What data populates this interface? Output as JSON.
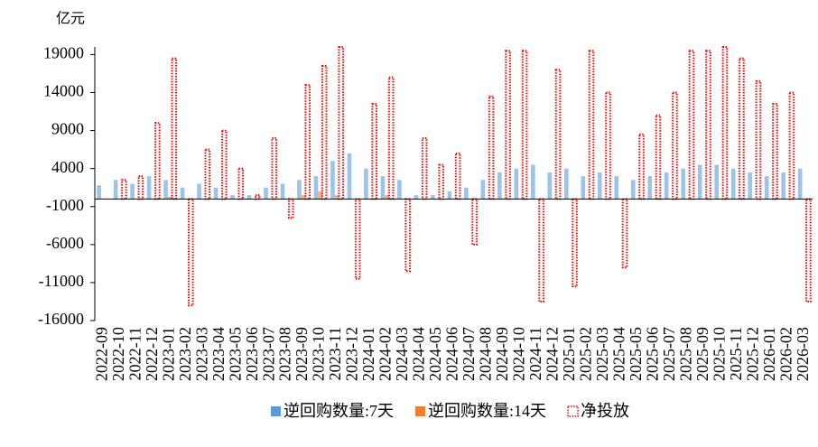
{
  "chart_data": {
    "type": "bar",
    "y_label": "亿元",
    "categories": [
      "2022-09",
      "2022-10",
      "2022-11",
      "2022-12",
      "2023-01",
      "2023-02",
      "2023-03",
      "2023-04",
      "2023-05",
      "2023-06",
      "2023-07",
      "2023-08",
      "2023-09",
      "2023-10",
      "2023-11",
      "2023-12",
      "2024-01",
      "2024-02",
      "2024-03",
      "2024-04",
      "2024-05",
      "2024-06",
      "2024-07",
      "2024-08",
      "2024-09",
      "2024-10",
      "2024-11",
      "2024-12",
      "2025-01",
      "2025-02",
      "2025-03",
      "2025-04",
      "2025-05",
      "2025-06",
      "2025-07",
      "2025-08",
      "2025-09",
      "2025-10",
      "2025-11",
      "2025-12",
      "2026-01",
      "2026-02",
      "2026-03"
    ],
    "series": [
      {
        "name": "逆回购数量:7天",
        "color": "#5b9bd5",
        "style": "bar",
        "values": [
          1800,
          2500,
          2000,
          3000,
          2500,
          1500,
          2000,
          1500,
          500,
          500,
          1500,
          2000,
          2500,
          3000,
          5000,
          6000,
          4000,
          3000,
          2500,
          500,
          500,
          1000,
          1500,
          2500,
          3500,
          4000,
          4500,
          3500,
          4000,
          3000,
          3500,
          3000,
          2500,
          3000,
          3500,
          4000,
          4500,
          4500,
          4000,
          3500,
          3000,
          3500,
          4000
        ]
      },
      {
        "name": "逆回购数量:14天",
        "color": "#ed7d31",
        "style": "bar",
        "values": [
          0,
          0,
          0,
          0,
          300,
          0,
          0,
          0,
          0,
          0,
          0,
          0,
          500,
          1000,
          500,
          0,
          0,
          500,
          0,
          0,
          0,
          0,
          0,
          0,
          0,
          0,
          0,
          0,
          0,
          0,
          0,
          0,
          0,
          0,
          0,
          0,
          0,
          0,
          0,
          0,
          0,
          0,
          0
        ]
      },
      {
        "name": "净投放",
        "color": "#ff0000",
        "style": "dotted",
        "values": [
          0,
          2500,
          3000,
          10000,
          18500,
          -14000,
          6500,
          9000,
          4000,
          500,
          8000,
          -2500,
          15000,
          17500,
          20000,
          -10500,
          12500,
          16000,
          -9500,
          8000,
          4500,
          6000,
          -6000,
          13500,
          19500,
          19500,
          -13500,
          17000,
          -11500,
          19500,
          14000,
          -9000,
          8500,
          11000,
          14000,
          19500,
          19500,
          20000,
          18500,
          15500,
          12500,
          14000,
          -13500
        ]
      }
    ],
    "ylim": [
      -16000,
      20000
    ],
    "yticks": [
      -16000,
      -11000,
      -6000,
      -1000,
      4000,
      9000,
      14000,
      19000
    ]
  }
}
